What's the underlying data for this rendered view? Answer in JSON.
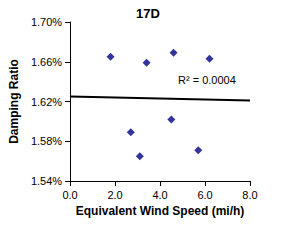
{
  "chart_data": {
    "type": "scatter",
    "title": "17D",
    "x_label": "Equivalent Wind Speed (mi/h)",
    "y_label": "Damping Ratio",
    "annotation": "R² = 0.0004",
    "series": [
      {
        "type": "scatter",
        "marker": "diamond",
        "color": "#000080",
        "x": [
          1.8,
          2.7,
          3.1,
          3.4,
          4.5,
          4.6,
          5.7,
          6.2
        ],
        "values": [
          1.665,
          1.589,
          1.565,
          1.659,
          1.602,
          1.669,
          1.571,
          1.663
        ]
      },
      {
        "type": "line",
        "line_style": "solid",
        "color": "#000000",
        "x": [
          0,
          8
        ],
        "values": [
          1.625,
          1.621
        ]
      }
    ],
    "xlim": [
      0,
      8
    ],
    "xticks": [
      {
        "value": 0,
        "label": "0.0"
      },
      {
        "value": 2,
        "label": "2.0"
      },
      {
        "value": 4,
        "label": "4.0"
      },
      {
        "value": 6,
        "label": "6.0"
      },
      {
        "value": 8,
        "label": "8.0"
      }
    ],
    "ylim": [
      1.54,
      1.7
    ],
    "yticks": [
      {
        "value": 1.54,
        "label": "1.54%"
      },
      {
        "value": 1.58,
        "label": "1.58%"
      },
      {
        "value": 1.62,
        "label": "1.62%"
      },
      {
        "value": 1.66,
        "label": "1.66%"
      },
      {
        "value": 1.7,
        "label": "1.70%"
      }
    ],
    "grid": false
  }
}
